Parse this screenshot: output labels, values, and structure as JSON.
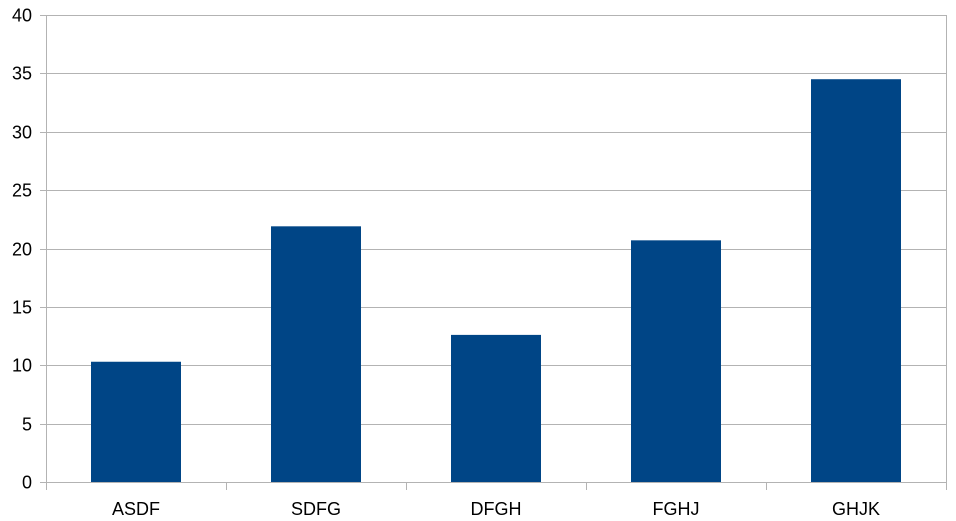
{
  "colors": {
    "bar": "#004586",
    "grid": "#b3b3b3",
    "axis": "#b3b3b3",
    "background": "#ffffff"
  },
  "chart_data": {
    "type": "bar",
    "categories": [
      "ASDF",
      "SDFG",
      "DFGH",
      "FGHJ",
      "GHJK"
    ],
    "values": [
      10.3,
      21.9,
      12.6,
      20.7,
      34.5
    ],
    "title": "",
    "xlabel": "",
    "ylabel": "",
    "ylim": [
      0,
      40
    ],
    "yticks": [
      "0",
      "5",
      "10",
      "15",
      "20",
      "25",
      "30",
      "35",
      "40"
    ],
    "grid": "horizontal",
    "legend": "none"
  }
}
